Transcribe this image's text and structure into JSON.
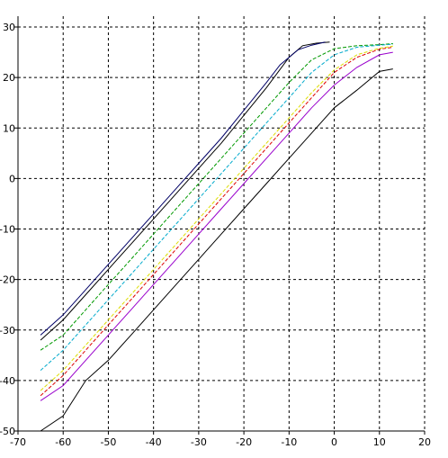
{
  "chart_data": {
    "type": "line",
    "title": "",
    "xlabel": "",
    "ylabel": "",
    "xlim": [
      -70,
      20
    ],
    "ylim": [
      -50,
      30
    ],
    "grid": true,
    "grid_style": "dashed",
    "x_ticks": [
      -70,
      -60,
      -50,
      -40,
      -30,
      -20,
      -10,
      0,
      10,
      20
    ],
    "x_tick_labels": [
      "-70",
      "-60",
      "-50",
      "-40",
      "-30",
      "-20",
      "-10",
      "0",
      "10",
      "20"
    ],
    "y_ticks": [
      30,
      20,
      10,
      0,
      -10,
      -20,
      -30,
      -40,
      -50
    ],
    "y_tick_labels": [
      "30",
      "20",
      "10",
      "0",
      "-10",
      "-20",
      "-30",
      "-40",
      "-50"
    ],
    "series": [
      {
        "color": "#000000",
        "dash": "solid",
        "points": [
          [
            -65,
            -32
          ],
          [
            -60,
            -28
          ],
          [
            -55,
            -23
          ],
          [
            -50,
            -18
          ],
          [
            -45,
            -13
          ],
          [
            -40,
            -8
          ],
          [
            -35,
            -3
          ],
          [
            -30,
            2
          ],
          [
            -25,
            7
          ],
          [
            -20,
            12.5
          ],
          [
            -15,
            18
          ],
          [
            -10,
            24
          ],
          [
            -7,
            26.3
          ],
          [
            -4,
            26.8
          ],
          [
            -1,
            27
          ]
        ]
      },
      {
        "color": "#000066",
        "dash": "solid",
        "points": [
          [
            -65,
            -31
          ],
          [
            -60,
            -27
          ],
          [
            -55,
            -22
          ],
          [
            -50,
            -17
          ],
          [
            -45,
            -12
          ],
          [
            -40,
            -7
          ],
          [
            -35,
            -2
          ],
          [
            -30,
            3
          ],
          [
            -25,
            8
          ],
          [
            -20,
            13.5
          ],
          [
            -15,
            19
          ],
          [
            -12,
            22.5
          ],
          [
            -8,
            25.5
          ],
          [
            -5,
            26.4
          ],
          [
            -2,
            27
          ]
        ]
      },
      {
        "color": "#009900",
        "dash": "dashed",
        "points": [
          [
            -65,
            -34
          ],
          [
            -60,
            -31
          ],
          [
            -55,
            -26
          ],
          [
            -50,
            -21
          ],
          [
            -45,
            -16
          ],
          [
            -40,
            -11
          ],
          [
            -35,
            -6
          ],
          [
            -30,
            -1
          ],
          [
            -25,
            4
          ],
          [
            -20,
            9
          ],
          [
            -15,
            14
          ],
          [
            -10,
            19
          ],
          [
            -5,
            23.5
          ],
          [
            0,
            25.7
          ],
          [
            5,
            26.3
          ],
          [
            10,
            26.5
          ],
          [
            13,
            26.7
          ]
        ]
      },
      {
        "color": "#00aacc",
        "dash": "dashed",
        "points": [
          [
            -65,
            -38
          ],
          [
            -60,
            -34
          ],
          [
            -55,
            -29
          ],
          [
            -50,
            -24
          ],
          [
            -45,
            -19
          ],
          [
            -40,
            -14
          ],
          [
            -35,
            -9
          ],
          [
            -30,
            -4
          ],
          [
            -25,
            1
          ],
          [
            -20,
            6
          ],
          [
            -15,
            11
          ],
          [
            -10,
            16
          ],
          [
            -5,
            21
          ],
          [
            0,
            24.5
          ],
          [
            5,
            26
          ],
          [
            10,
            26.4
          ],
          [
            13,
            26.6
          ]
        ]
      },
      {
        "color": "#dd0000",
        "dash": "dashed",
        "points": [
          [
            -65,
            -43
          ],
          [
            -60,
            -39
          ],
          [
            -55,
            -34
          ],
          [
            -50,
            -29
          ],
          [
            -45,
            -24
          ],
          [
            -40,
            -19
          ],
          [
            -35,
            -14
          ],
          [
            -30,
            -9
          ],
          [
            -25,
            -4
          ],
          [
            -20,
            1
          ],
          [
            -15,
            6
          ],
          [
            -10,
            11
          ],
          [
            -5,
            16
          ],
          [
            0,
            21
          ],
          [
            5,
            24
          ],
          [
            10,
            25.6
          ],
          [
            13,
            26
          ]
        ]
      },
      {
        "color": "#dddd00",
        "dash": "dashed",
        "points": [
          [
            -65,
            -42
          ],
          [
            -60,
            -38
          ],
          [
            -55,
            -33
          ],
          [
            -50,
            -28
          ],
          [
            -45,
            -23
          ],
          [
            -40,
            -18
          ],
          [
            -35,
            -13
          ],
          [
            -30,
            -8
          ],
          [
            -25,
            -3
          ],
          [
            -20,
            2
          ],
          [
            -15,
            7
          ],
          [
            -10,
            12
          ],
          [
            -5,
            17
          ],
          [
            0,
            21.5
          ],
          [
            5,
            24.5
          ],
          [
            10,
            25.8
          ],
          [
            13,
            26.2
          ]
        ]
      },
      {
        "color": "#9900cc",
        "dash": "solid",
        "points": [
          [
            -65,
            -44
          ],
          [
            -60,
            -41
          ],
          [
            -55,
            -36
          ],
          [
            -50,
            -31
          ],
          [
            -45,
            -26
          ],
          [
            -40,
            -21
          ],
          [
            -35,
            -16
          ],
          [
            -30,
            -11
          ],
          [
            -25,
            -6
          ],
          [
            -20,
            -1
          ],
          [
            -15,
            4
          ],
          [
            -10,
            9
          ],
          [
            -5,
            14
          ],
          [
            0,
            18.5
          ],
          [
            5,
            22
          ],
          [
            10,
            24.5
          ],
          [
            13,
            25
          ]
        ]
      },
      {
        "color": "#000000",
        "dash": "solid",
        "points": [
          [
            -65,
            -50
          ],
          [
            -60,
            -47
          ],
          [
            -55,
            -40
          ],
          [
            -50,
            -36
          ],
          [
            -45,
            -31
          ],
          [
            -40,
            -26
          ],
          [
            -35,
            -21
          ],
          [
            -30,
            -16
          ],
          [
            -25,
            -11
          ],
          [
            -20,
            -6
          ],
          [
            -15,
            -1
          ],
          [
            -10,
            4
          ],
          [
            -5,
            9
          ],
          [
            0,
            14
          ],
          [
            5,
            17.5
          ],
          [
            10,
            21.2
          ],
          [
            13,
            21.7
          ]
        ]
      }
    ]
  }
}
